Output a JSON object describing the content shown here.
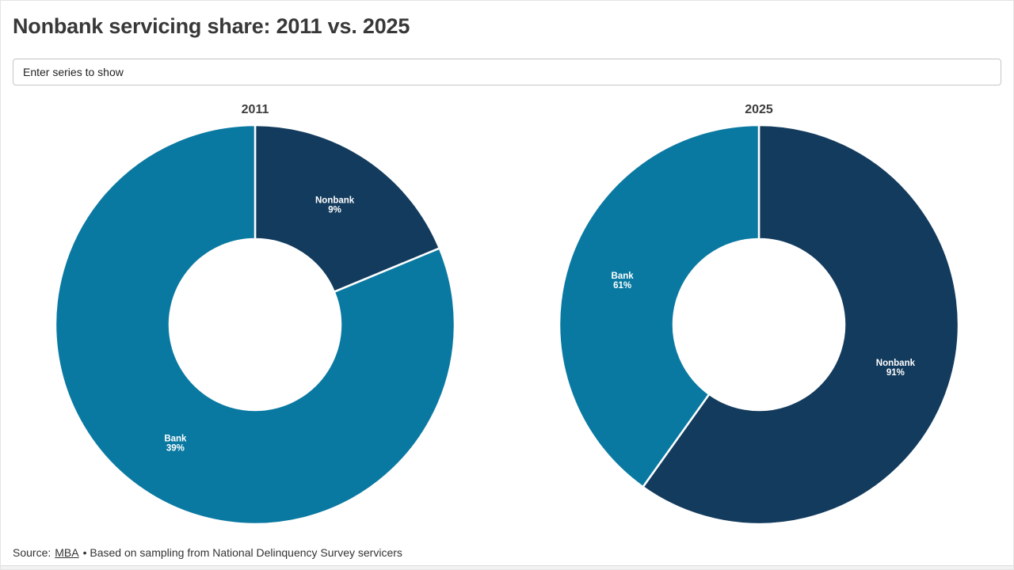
{
  "page": {
    "title": "Nonbank servicing share: 2011 vs. 2025"
  },
  "filter": {
    "placeholder": "Enter series to show"
  },
  "footer": {
    "source_prefix": "Source:",
    "source_link": "MBA",
    "note": "• Based on sampling from National Delinquency Survey servicers"
  },
  "colors": {
    "nonbank": "#133B5D",
    "bank": "#0A79A1",
    "slice_label_text": "#FFFFFF",
    "slice_divider": "#FFFFFF",
    "title_text": "#383838"
  },
  "chart_data": [
    {
      "type": "pie",
      "subtype": "donut",
      "title": "2011",
      "start_angle_deg": 0,
      "direction": "clockwise",
      "inner_radius_ratio": 0.43,
      "slices": [
        {
          "label": "Nonbank",
          "value": 9,
          "display": "9%",
          "color": "#133B5D"
        },
        {
          "label": "Bank",
          "value": 39,
          "display": "39%",
          "color": "#0A79A1"
        }
      ]
    },
    {
      "type": "pie",
      "subtype": "donut",
      "title": "2025",
      "start_angle_deg": 0,
      "direction": "clockwise",
      "inner_radius_ratio": 0.43,
      "slices": [
        {
          "label": "Nonbank",
          "value": 91,
          "display": "91%",
          "color": "#133B5D"
        },
        {
          "label": "Bank",
          "value": 61,
          "display": "61%",
          "color": "#0A79A1"
        }
      ]
    }
  ]
}
